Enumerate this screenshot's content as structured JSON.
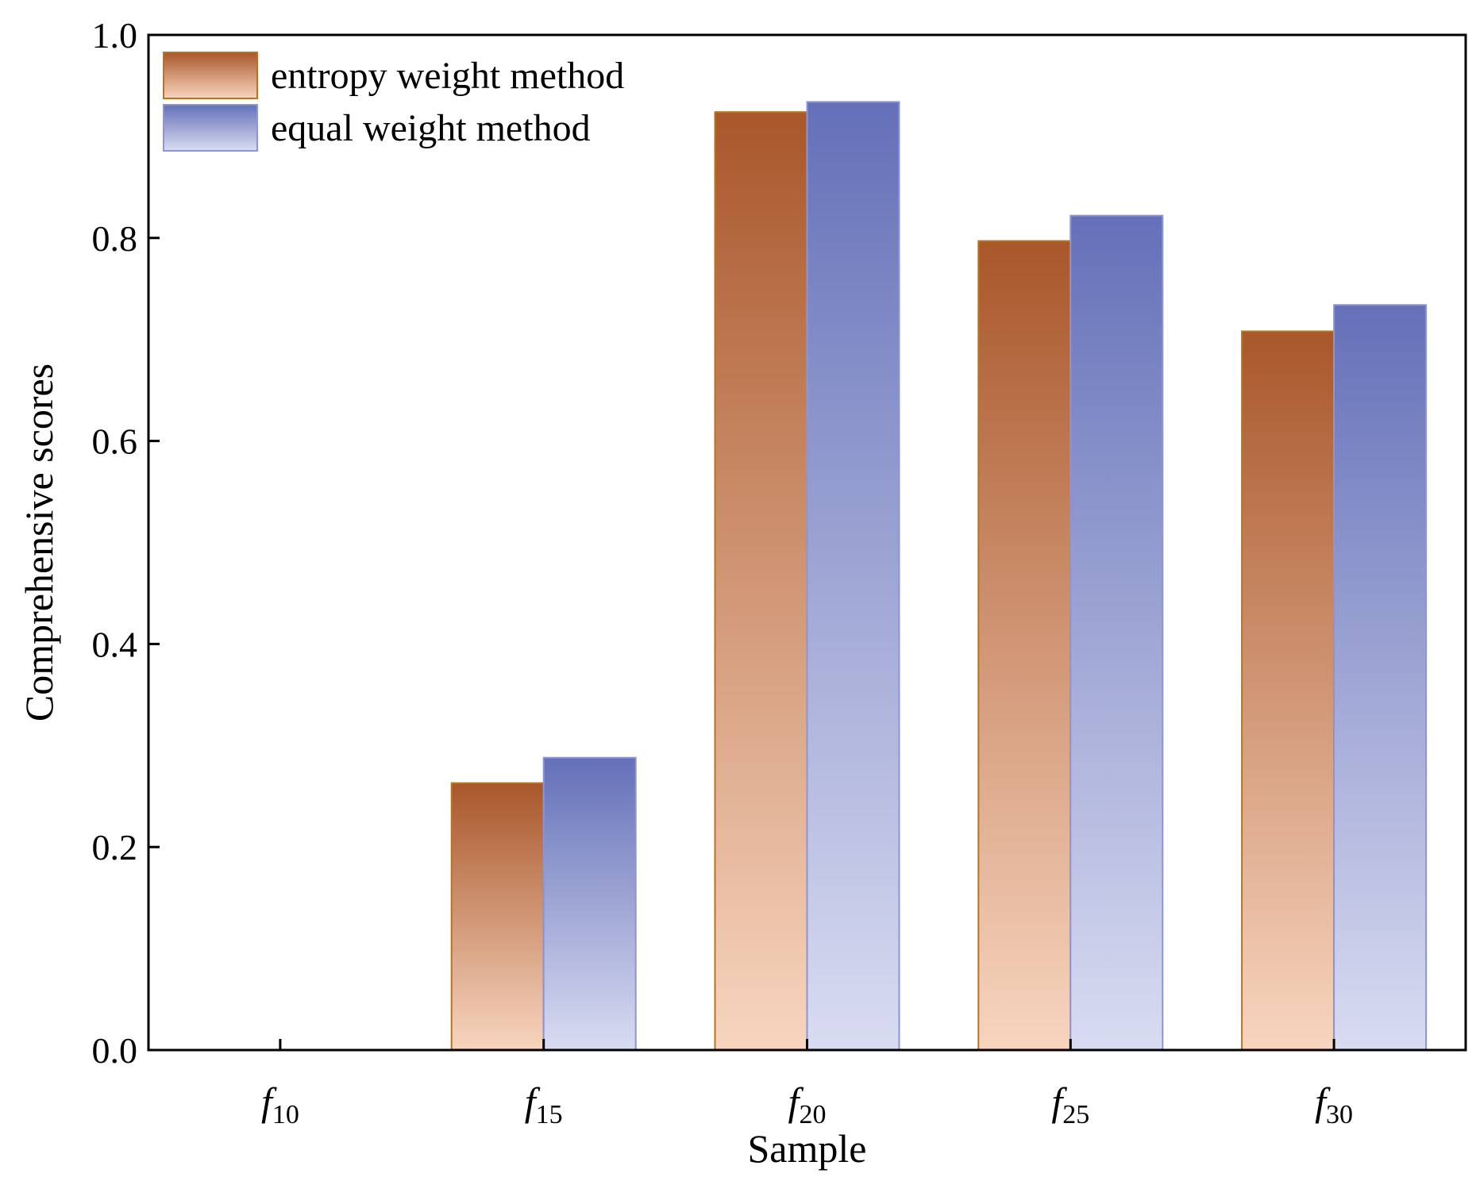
{
  "chart_data": {
    "type": "bar",
    "categories": [
      {
        "base": "f",
        "sub": "10"
      },
      {
        "base": "f",
        "sub": "15"
      },
      {
        "base": "f",
        "sub": "20"
      },
      {
        "base": "f",
        "sub": "25"
      },
      {
        "base": "f",
        "sub": "30"
      }
    ],
    "series": [
      {
        "name": "entropy weight method",
        "values": [
          0.0,
          0.263,
          0.924,
          0.797,
          0.708
        ],
        "color_top": "#a9572b",
        "color_bottom": "#f8d5bf",
        "stroke": "#b8741e"
      },
      {
        "name": "equal weight method",
        "values": [
          0.0,
          0.288,
          0.934,
          0.822,
          0.734
        ],
        "color_top": "#6470b8",
        "color_bottom": "#d9dcf1",
        "stroke": "#8c95d6"
      }
    ],
    "xlabel": "Sample",
    "ylabel": "Comprehensive scores",
    "ylim": [
      0.0,
      1.0
    ],
    "yticks": [
      "0.0",
      "0.2",
      "0.4",
      "0.6",
      "0.8",
      "1.0"
    ],
    "grid": false,
    "legend_position": "top-left"
  }
}
